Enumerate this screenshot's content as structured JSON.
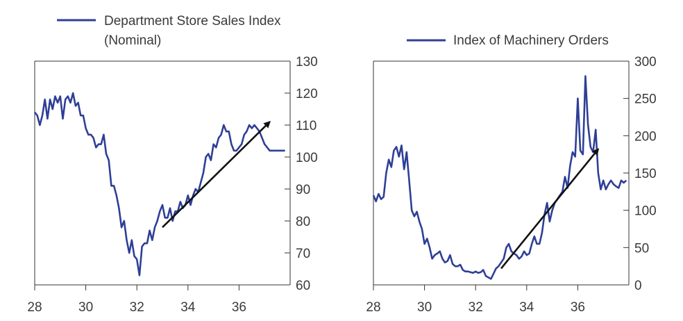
{
  "chart_data": [
    {
      "type": "line",
      "title": "",
      "legend": [
        "Department Store Sales Index",
        "(Nominal)"
      ],
      "series_name": "Department Store Sales Index (Nominal)",
      "xlabel": "",
      "ylabel": "",
      "xlim": [
        28,
        38
      ],
      "ylim": [
        60,
        130
      ],
      "x_ticks": [
        "28",
        "30",
        "32",
        "34",
        "36"
      ],
      "y_ticks": [
        "60",
        "70",
        "80",
        "90",
        "100",
        "110",
        "120",
        "130"
      ],
      "y_axis_side": "right",
      "color": "#2e3f96",
      "arrow": {
        "from": [
          33.0,
          78
        ],
        "to": [
          37.2,
          111
        ]
      },
      "x": [
        28.0,
        28.1,
        28.2,
        28.3,
        28.4,
        28.5,
        28.6,
        28.7,
        28.8,
        28.9,
        29.0,
        29.1,
        29.2,
        29.3,
        29.4,
        29.5,
        29.6,
        29.7,
        29.8,
        29.9,
        30.0,
        30.1,
        30.2,
        30.3,
        30.4,
        30.5,
        30.6,
        30.7,
        30.8,
        30.9,
        31.0,
        31.1,
        31.2,
        31.3,
        31.4,
        31.5,
        31.6,
        31.7,
        31.8,
        31.9,
        32.0,
        32.1,
        32.2,
        32.3,
        32.4,
        32.5,
        32.6,
        32.7,
        32.8,
        32.9,
        33.0,
        33.1,
        33.2,
        33.3,
        33.4,
        33.5,
        33.6,
        33.7,
        33.8,
        33.9,
        34.0,
        34.1,
        34.2,
        34.3,
        34.4,
        34.5,
        34.6,
        34.7,
        34.8,
        34.9,
        35.0,
        35.1,
        35.2,
        35.3,
        35.4,
        35.5,
        35.6,
        35.7,
        35.8,
        35.9,
        36.0,
        36.1,
        36.2,
        36.3,
        36.4,
        36.5,
        36.6,
        36.7,
        36.8,
        36.9,
        37.0,
        37.1,
        37.2,
        37.3,
        37.4,
        37.5,
        37.6,
        37.7,
        37.8
      ],
      "y": [
        114,
        113,
        110,
        113,
        118,
        112,
        118,
        115,
        119,
        117,
        119,
        112,
        118,
        119,
        117,
        120,
        116,
        117,
        113,
        113,
        109,
        107,
        107,
        106,
        103,
        104,
        104,
        107,
        101,
        99,
        91,
        91,
        88,
        84,
        78,
        80,
        74,
        70,
        74,
        69,
        68,
        63,
        72,
        73,
        73,
        77,
        74,
        78,
        80,
        83,
        85,
        81,
        81,
        84,
        80,
        83,
        83,
        86,
        84,
        85,
        88,
        85,
        88,
        90,
        89,
        92,
        95,
        100,
        101,
        99,
        104,
        103,
        106,
        107,
        110,
        108,
        108,
        104,
        102,
        102,
        103,
        104,
        107,
        108,
        110,
        109,
        110,
        109,
        108,
        106,
        104,
        103,
        102,
        102,
        102,
        102,
        102,
        102,
        102
      ]
    },
    {
      "type": "line",
      "title": "",
      "legend": [
        "Index of Machinery Orders"
      ],
      "series_name": "Index of Machinery Orders",
      "xlabel": "",
      "ylabel": "",
      "xlim": [
        28,
        38
      ],
      "ylim": [
        0,
        300
      ],
      "x_ticks": [
        "28",
        "30",
        "32",
        "34",
        "36"
      ],
      "y_ticks": [
        "0",
        "50",
        "100",
        "150",
        "200",
        "250",
        "300"
      ],
      "y_axis_side": "right",
      "color": "#2e3f96",
      "arrow": {
        "from": [
          33.0,
          22
        ],
        "to": [
          36.8,
          182
        ]
      },
      "x": [
        28.0,
        28.1,
        28.2,
        28.3,
        28.4,
        28.5,
        28.6,
        28.7,
        28.8,
        28.9,
        29.0,
        29.1,
        29.2,
        29.3,
        29.4,
        29.5,
        29.6,
        29.7,
        29.8,
        29.9,
        30.0,
        30.1,
        30.2,
        30.3,
        30.4,
        30.5,
        30.6,
        30.7,
        30.8,
        30.9,
        31.0,
        31.1,
        31.2,
        31.3,
        31.4,
        31.5,
        31.6,
        31.7,
        31.8,
        31.9,
        32.0,
        32.1,
        32.2,
        32.3,
        32.4,
        32.5,
        32.6,
        32.7,
        32.8,
        32.9,
        33.0,
        33.1,
        33.2,
        33.3,
        33.4,
        33.5,
        33.6,
        33.7,
        33.8,
        33.9,
        34.0,
        34.1,
        34.2,
        34.3,
        34.4,
        34.5,
        34.6,
        34.7,
        34.8,
        34.9,
        35.0,
        35.1,
        35.2,
        35.3,
        35.4,
        35.5,
        35.6,
        35.7,
        35.8,
        35.9,
        36.0,
        36.1,
        36.2,
        36.3,
        36.4,
        36.5,
        36.6,
        36.7,
        36.8,
        36.9,
        37.0,
        37.1,
        37.2,
        37.3,
        37.4,
        37.5,
        37.6,
        37.7,
        37.8,
        37.9
      ],
      "y": [
        120,
        112,
        122,
        115,
        118,
        150,
        168,
        158,
        180,
        185,
        172,
        187,
        155,
        178,
        140,
        100,
        92,
        98,
        85,
        75,
        55,
        62,
        50,
        35,
        40,
        42,
        45,
        35,
        30,
        32,
        40,
        28,
        25,
        25,
        27,
        20,
        18,
        18,
        17,
        16,
        18,
        16,
        17,
        20,
        12,
        10,
        8,
        15,
        22,
        25,
        30,
        35,
        50,
        55,
        45,
        42,
        40,
        35,
        38,
        45,
        40,
        42,
        55,
        65,
        55,
        55,
        70,
        95,
        110,
        85,
        100,
        110,
        115,
        120,
        125,
        145,
        130,
        160,
        178,
        172,
        250,
        180,
        175,
        280,
        215,
        185,
        178,
        208,
        150,
        128,
        140,
        128,
        135,
        140,
        135,
        132,
        130,
        140,
        137,
        140
      ]
    }
  ]
}
